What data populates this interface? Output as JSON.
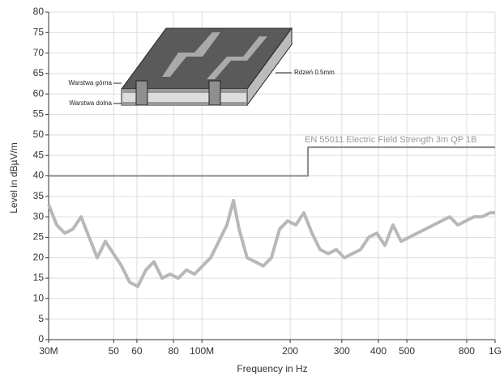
{
  "chart_data": {
    "type": "line",
    "xlabel": "Frequency in Hz",
    "ylabel": "Level in dBµV/m",
    "xscale": "log",
    "grid": true,
    "xlim": [
      30000000,
      1000000000
    ],
    "xticks": [
      {
        "value": 30000000,
        "label": "30M"
      },
      {
        "value": 50000000,
        "label": "50"
      },
      {
        "value": 60000000,
        "label": "60"
      },
      {
        "value": 80000000,
        "label": "80"
      },
      {
        "value": 100000000,
        "label": "100M"
      },
      {
        "value": 200000000,
        "label": "200"
      },
      {
        "value": 300000000,
        "label": "300"
      },
      {
        "value": 400000000,
        "label": "400"
      },
      {
        "value": 500000000,
        "label": "500"
      },
      {
        "value": 800000000,
        "label": "800"
      },
      {
        "value": 1000000000,
        "label": "1G"
      }
    ],
    "ylim": [
      0,
      80
    ],
    "yticks": [
      0,
      5,
      10,
      15,
      20,
      25,
      30,
      35,
      40,
      45,
      50,
      55,
      60,
      65,
      70,
      75,
      80
    ],
    "limit_label": "EN 55011 Electric Field Strength 3m QP 1B",
    "series": [
      {
        "color": "#b8b8b8",
        "x": [
          30000000,
          31970000,
          34070000,
          36310000,
          38700000,
          41240000,
          43950000,
          46840000,
          49920000,
          53200000,
          56690000,
          60420000,
          64390000,
          68620000,
          73130000,
          77930000,
          83050000,
          88510000,
          94330000,
          100500000,
          107100000,
          114200000,
          121700000,
          128100000,
          133900000,
          142600000,
          152000000,
          162000000,
          172600000,
          184000000,
          196100000,
          209000000,
          222700000,
          237300000,
          252900000,
          269600000,
          287300000,
          306200000,
          326300000,
          347700000,
          370600000,
          394900000,
          420900000,
          448500000,
          478000000,
          509400000,
          542900000,
          578600000,
          616600000,
          657100000,
          700300000,
          746300000,
          795400000,
          847600000,
          903300000,
          962700000,
          1000000000
        ],
        "values": [
          33,
          28,
          26,
          27,
          30,
          25,
          20,
          24,
          21,
          18,
          14,
          13,
          17,
          19,
          15,
          16,
          15,
          17,
          16,
          18,
          20,
          24,
          28,
          34,
          27,
          20,
          19,
          18,
          20,
          27,
          29,
          28,
          31,
          26,
          22,
          21,
          22,
          20,
          21,
          22,
          25,
          26,
          23,
          28,
          24,
          25,
          26,
          27,
          28,
          29,
          30,
          28,
          29,
          30,
          30,
          31,
          31
        ]
      },
      {
        "color": "#8a8a8a",
        "x": [
          30000000,
          230000000,
          230000000,
          1000000000
        ],
        "values": [
          40,
          40,
          47,
          47
        ]
      }
    ]
  },
  "inset": {
    "top_layer": "Warstwa górna",
    "bottom_layer": "Warstwa dolna",
    "core": "Rdzeń 0.5mm"
  }
}
